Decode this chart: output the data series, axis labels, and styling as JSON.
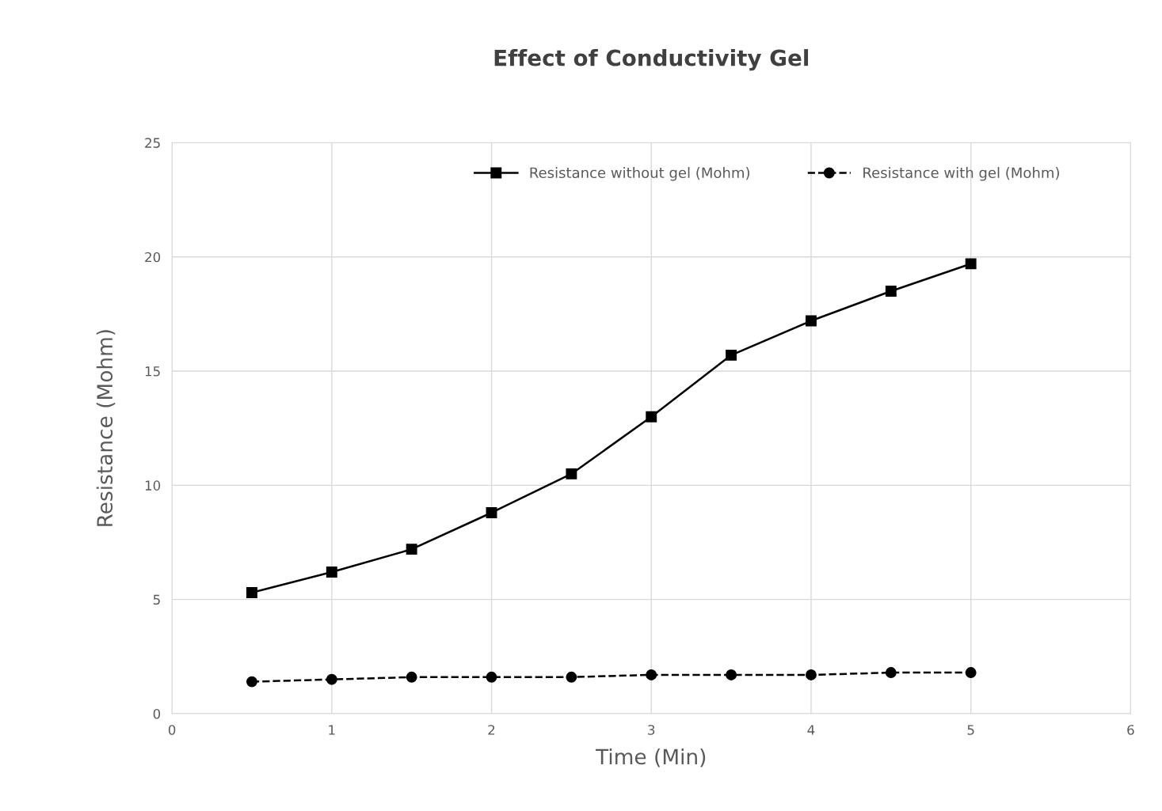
{
  "chart_data": {
    "type": "line",
    "title": "Effect of Conductivity Gel",
    "xlabel": "Time (Min)",
    "ylabel": "Resistance (Mohm)",
    "x": [
      0.5,
      1,
      1.5,
      2,
      2.5,
      3,
      3.5,
      4,
      4.5,
      5
    ],
    "series": [
      {
        "name": "Resistance without gel (Mohm)",
        "color": "#000000",
        "marker": "square",
        "line_style": "solid",
        "values": [
          5.3,
          6.2,
          7.2,
          8.8,
          10.5,
          13.0,
          15.7,
          17.2,
          18.5,
          19.7
        ]
      },
      {
        "name": "Resistance with gel (Mohm)",
        "color": "#000000",
        "marker": "circle",
        "line_style": "dashed",
        "values": [
          1.4,
          1.5,
          1.6,
          1.6,
          1.6,
          1.7,
          1.7,
          1.7,
          1.8,
          1.8
        ]
      }
    ],
    "xlim": [
      0,
      6
    ],
    "xticks": [
      0,
      1,
      2,
      3,
      4,
      5,
      6
    ],
    "ylim": [
      0,
      25
    ],
    "yticks": [
      0,
      5,
      10,
      15,
      20,
      25
    ],
    "grid": true,
    "legend": "top right"
  }
}
